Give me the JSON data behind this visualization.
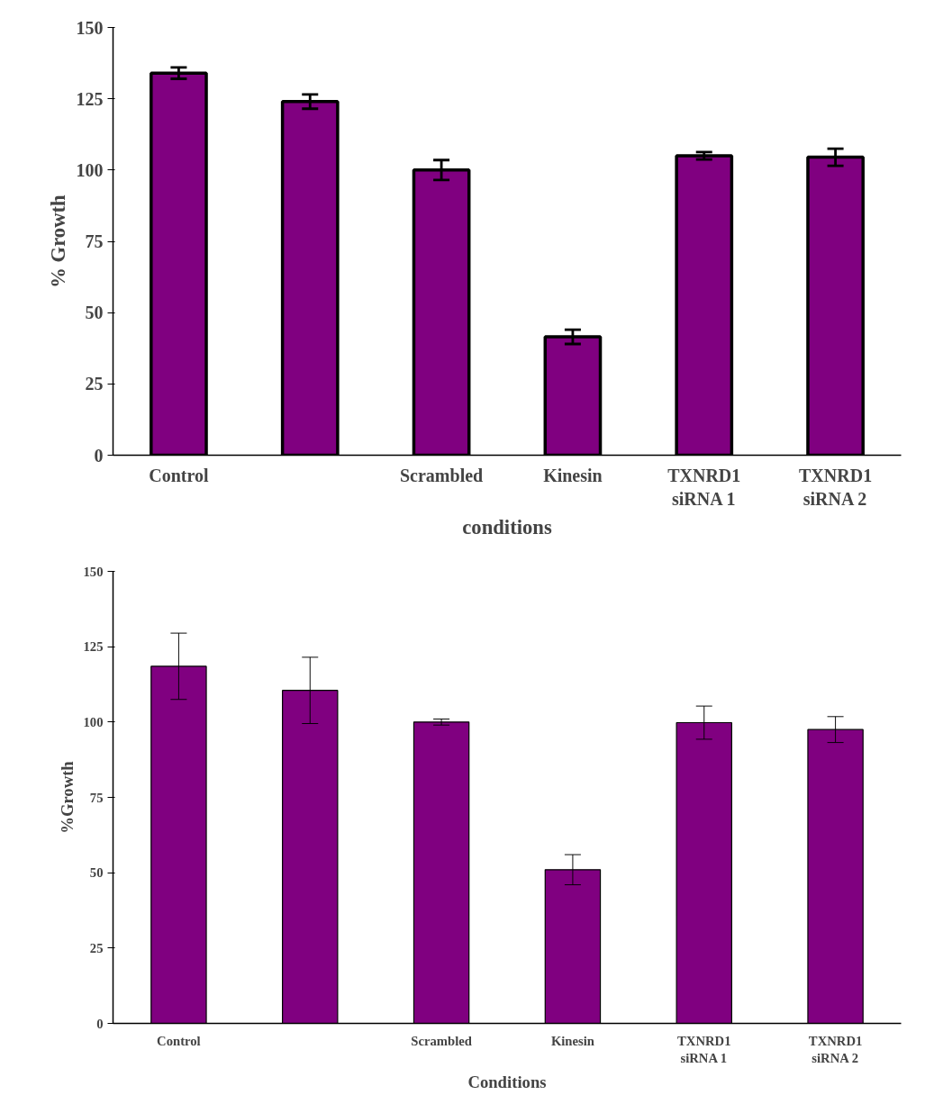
{
  "chart_data": [
    {
      "type": "bar",
      "xlabel": "conditions",
      "ylabel": "% Growth",
      "categories": [
        "Control",
        null,
        "Scrambled",
        "Kinesin",
        "TXNRD1\nsiRNA 1",
        "TXNRD1\nsiRNA 2"
      ],
      "values": [
        134,
        124,
        100,
        41.5,
        105,
        104.5
      ],
      "errors": [
        2,
        2.5,
        3.5,
        2.5,
        1.3,
        3
      ],
      "color": "#800080",
      "ylim": [
        0,
        150
      ],
      "yticks": [
        0,
        25,
        50,
        75,
        100,
        125,
        150
      ],
      "grid": false
    },
    {
      "type": "bar",
      "xlabel": "Conditions",
      "ylabel": "%Growth",
      "categories": [
        "Control",
        null,
        "Scrambled",
        "Kinesin",
        "TXNRD1\nsiRNA 1",
        "TXNRD1\nsiRNA 2"
      ],
      "values": [
        118.5,
        110.5,
        100,
        51,
        99.8,
        97.5
      ],
      "errors": [
        11,
        11,
        1,
        5,
        5.5,
        4.3
      ],
      "color": "#800080",
      "ylim": [
        0,
        150
      ],
      "yticks": [
        0,
        25,
        50,
        75,
        100,
        125,
        150
      ],
      "grid": false
    }
  ]
}
